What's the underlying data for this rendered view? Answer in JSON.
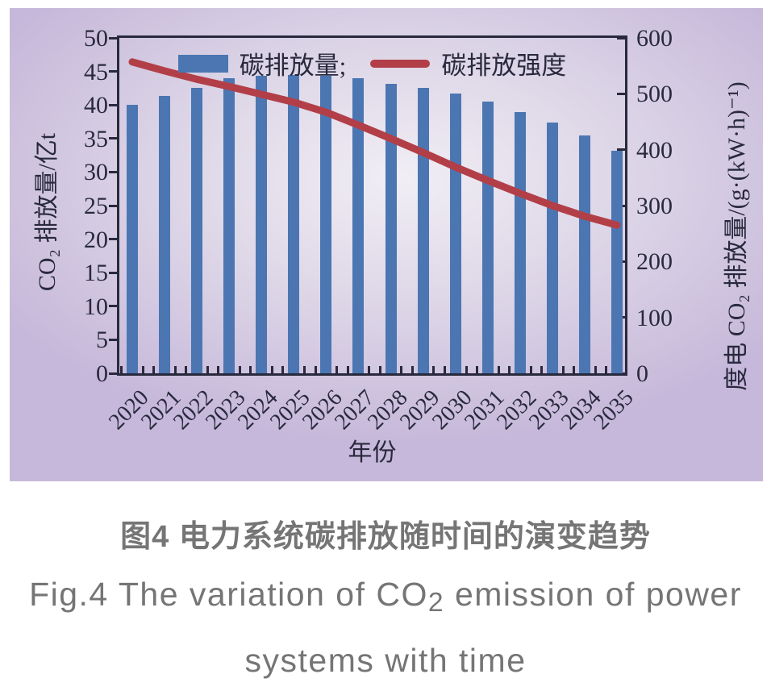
{
  "chart_data": {
    "type": "bar+line",
    "categories": [
      "2020",
      "2021",
      "2022",
      "2023",
      "2024",
      "2025",
      "2026",
      "2027",
      "2028",
      "2029",
      "2030",
      "2031",
      "2032",
      "2033",
      "2034",
      "2035"
    ],
    "series": [
      {
        "name": "碳排放量",
        "type": "bar",
        "axis": "left",
        "color": "#4b76b2",
        "values": [
          40.0,
          41.4,
          42.6,
          44.0,
          44.3,
          44.5,
          44.4,
          44.0,
          43.1,
          42.6,
          41.7,
          40.5,
          38.9,
          37.4,
          35.4,
          33.2
        ]
      },
      {
        "name": "碳排放强度",
        "type": "line",
        "axis": "right",
        "color": "#b23f48",
        "values": [
          557,
          541,
          526,
          513,
          499,
          485,
          467,
          444,
          420,
          395,
          369,
          345,
          322,
          300,
          281,
          265
        ]
      }
    ],
    "left_axis": {
      "label": "CO₂ 排放量/亿t",
      "min": 0,
      "max": 50,
      "tick_step": 5
    },
    "right_axis": {
      "label": "度电 CO₂ 排放量/(g·(kW·h)⁻¹)",
      "min": 0,
      "max": 600,
      "tick_step": 100
    },
    "x_axis": {
      "label": "年份"
    },
    "legend": {
      "items": [
        {
          "label": "碳排放量;",
          "marker": "bar"
        },
        {
          "label": "碳排放强度",
          "marker": "line"
        }
      ]
    },
    "style": {
      "frame_color": "#29293d",
      "text_color": "#29293d",
      "panel_center": "#f1eef5",
      "panel_mid": "#ddd6e7",
      "panel_edge": "#c6b8da"
    }
  },
  "caption": {
    "zh": "图4 电力系统碳排放随时间的演变趋势",
    "en_line1_pre": "Fig.4 The variation of CO",
    "en_line1_sub": "2",
    "en_line1_post": " emission of power",
    "en_line2": "systems with time",
    "color": "#757575"
  }
}
